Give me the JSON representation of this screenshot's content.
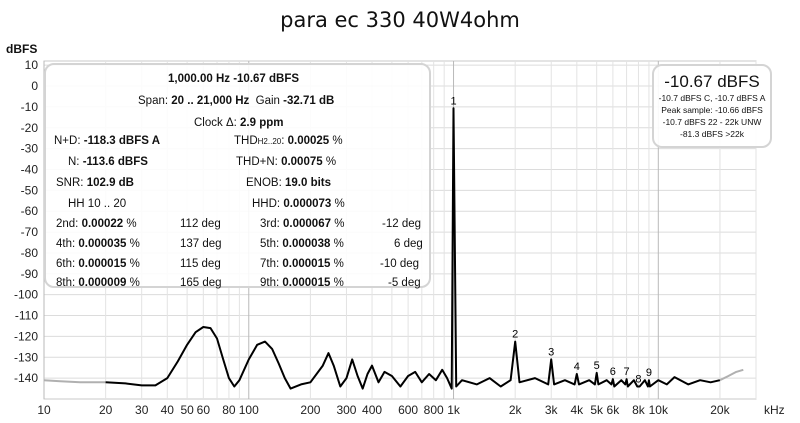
{
  "chart_data": {
    "type": "line",
    "title": "para ec 330 40W4ohm",
    "ylabel": "dBFS",
    "xunit": "kHz",
    "x_scale": "log",
    "xlim": [
      10,
      30000
    ],
    "ylim": [
      -150,
      12
    ],
    "grid": true,
    "yticks": [
      10,
      0,
      -10,
      -20,
      -30,
      -40,
      -50,
      -60,
      -70,
      -80,
      -90,
      -100,
      -110,
      -120,
      -130,
      -140
    ],
    "xticks": [
      {
        "v": 10,
        "label": "10"
      },
      {
        "v": 20,
        "label": "20"
      },
      {
        "v": 30,
        "label": "30"
      },
      {
        "v": 40,
        "label": "40"
      },
      {
        "v": 50,
        "label": "50"
      },
      {
        "v": 60,
        "label": "60"
      },
      {
        "v": 80,
        "label": "80"
      },
      {
        "v": 100,
        "label": "100"
      },
      {
        "v": 200,
        "label": "200"
      },
      {
        "v": 300,
        "label": "300"
      },
      {
        "v": 400,
        "label": "400"
      },
      {
        "v": 600,
        "label": "600"
      },
      {
        "v": 800,
        "label": "800"
      },
      {
        "v": 1000,
        "label": "1k"
      },
      {
        "v": 2000,
        "label": "2k"
      },
      {
        "v": 3000,
        "label": "3k"
      },
      {
        "v": 4000,
        "label": "4k"
      },
      {
        "v": 5000,
        "label": "5k"
      },
      {
        "v": 6000,
        "label": "6k"
      },
      {
        "v": 8000,
        "label": "8k"
      },
      {
        "v": 10000,
        "label": "10k"
      },
      {
        "v": 20000,
        "label": "20k"
      }
    ],
    "series_color": "#000000",
    "outside_band_color": "#b0b0b0",
    "floor_points": [
      [
        10,
        -141
      ],
      [
        12,
        -141.5
      ],
      [
        15,
        -142
      ],
      [
        18,
        -142
      ],
      [
        20,
        -142
      ],
      [
        25,
        -142.5
      ],
      [
        30,
        -143.5
      ],
      [
        35,
        -143.5
      ],
      [
        40,
        -140
      ],
      [
        45,
        -132
      ],
      [
        50,
        -124
      ],
      [
        55,
        -118
      ],
      [
        60,
        -115.5
      ],
      [
        65,
        -116
      ],
      [
        70,
        -121
      ],
      [
        75,
        -131
      ],
      [
        80,
        -140
      ],
      [
        85,
        -144
      ],
      [
        90,
        -141
      ],
      [
        100,
        -131
      ],
      [
        110,
        -124
      ],
      [
        120,
        -122.5
      ],
      [
        130,
        -126
      ],
      [
        140,
        -133
      ],
      [
        150,
        -140
      ],
      [
        160,
        -145
      ],
      [
        180,
        -143
      ],
      [
        200,
        -142
      ],
      [
        230,
        -134
      ],
      [
        245,
        -128
      ],
      [
        260,
        -134
      ],
      [
        280,
        -144
      ],
      [
        300,
        -140
      ],
      [
        320,
        -131
      ],
      [
        340,
        -139
      ],
      [
        360,
        -145
      ],
      [
        380,
        -138
      ],
      [
        400,
        -134
      ],
      [
        430,
        -142
      ],
      [
        460,
        -137
      ],
      [
        500,
        -139
      ],
      [
        550,
        -144
      ],
      [
        600,
        -139
      ],
      [
        650,
        -137
      ],
      [
        700,
        -142
      ],
      [
        760,
        -138
      ],
      [
        820,
        -141
      ],
      [
        880,
        -136
      ],
      [
        930,
        -140
      ],
      [
        980,
        -145
      ],
      [
        1000,
        -10.67
      ],
      [
        1030,
        -144
      ],
      [
        1100,
        -141
      ],
      [
        1300,
        -143
      ],
      [
        1500,
        -140
      ],
      [
        1700,
        -144
      ],
      [
        1900,
        -141
      ],
      [
        2000,
        -122.5
      ],
      [
        2100,
        -142
      ],
      [
        2500,
        -140
      ],
      [
        2900,
        -143
      ],
      [
        3000,
        -131
      ],
      [
        3100,
        -143
      ],
      [
        3500,
        -141
      ],
      [
        3900,
        -143
      ],
      [
        4000,
        -138
      ],
      [
        4100,
        -143
      ],
      [
        4600,
        -141
      ],
      [
        4900,
        -143
      ],
      [
        5000,
        -137.5
      ],
      [
        5100,
        -143
      ],
      [
        5600,
        -141
      ],
      [
        5900,
        -143
      ],
      [
        6000,
        -140.5
      ],
      [
        6100,
        -144
      ],
      [
        6600,
        -141
      ],
      [
        6900,
        -143
      ],
      [
        7000,
        -140.5
      ],
      [
        7100,
        -144
      ],
      [
        7600,
        -141
      ],
      [
        7900,
        -144
      ],
      [
        8000,
        -144
      ],
      [
        8100,
        -144
      ],
      [
        8600,
        -141
      ],
      [
        8900,
        -144
      ],
      [
        9000,
        -141
      ],
      [
        9100,
        -144
      ],
      [
        10000,
        -141
      ],
      [
        11000,
        -143
      ],
      [
        12000,
        -139.5
      ],
      [
        14000,
        -143
      ],
      [
        16000,
        -141
      ],
      [
        18000,
        -142
      ],
      [
        20000,
        -141
      ],
      [
        22000,
        -139
      ],
      [
        24000,
        -137
      ],
      [
        26000,
        -136
      ]
    ],
    "harmonics": [
      {
        "label": "1",
        "x": 1000,
        "y": -10.67
      },
      {
        "label": "2",
        "x": 2000,
        "y": -122.5
      },
      {
        "label": "3",
        "x": 3000,
        "y": -131
      },
      {
        "label": "4",
        "x": 4000,
        "y": -138
      },
      {
        "label": "5",
        "x": 5000,
        "y": -137.5
      },
      {
        "label": "6",
        "x": 6000,
        "y": -140.5
      },
      {
        "label": "7",
        "x": 7000,
        "y": -140.5
      },
      {
        "label": "8",
        "x": 8000,
        "y": -144
      },
      {
        "label": "9",
        "x": 9000,
        "y": -141
      }
    ]
  },
  "panel": {
    "line1": "1,000.00 Hz  -10.67 dBFS",
    "span_label": "Span:",
    "span_value": "20 .. 21,000 Hz",
    "gain_label": "Gain",
    "gain_value": "-32.71 dB",
    "clock_label": "Clock Δ:",
    "clock_value": "2.9 ppm",
    "nd_label": "N+D:",
    "nd_value": "-118.3 dBFS A",
    "thd_label": "THD",
    "thd_sub": "H2..20",
    "thd_value": "0.00025",
    "n_label": "N:",
    "n_value": "-113.6 dBFS",
    "thdn_label": "THD+N:",
    "thdn_value": "0.00075",
    "snr_label": "SNR:",
    "snr_value": "102.9 dB",
    "enob_label": "ENOB:",
    "enob_value": "19.0 bits",
    "hh_text": "HH 10 .. 20",
    "hhd_label": "HHD:",
    "hhd_value": "0.000073",
    "percent": "%",
    "harmonic_table": [
      {
        "l_label": "2nd:",
        "l_value": "0.00022",
        "l_deg": "112 deg",
        "r_label": "3rd:",
        "r_value": "0.000067",
        "r_deg": "-12 deg"
      },
      {
        "l_label": "4th:",
        "l_value": "0.000035",
        "l_deg": "137 deg",
        "r_label": "5th:",
        "r_value": "0.000038",
        "r_deg": "6 deg"
      },
      {
        "l_label": "6th:",
        "l_value": "0.000015",
        "l_deg": "115 deg",
        "r_label": "7th:",
        "r_value": "0.000015",
        "r_deg": "-10 deg"
      },
      {
        "l_label": "8th:",
        "l_value": "0.000009",
        "l_deg": "165 deg",
        "r_label": "9th:",
        "r_value": "0.000015",
        "r_deg": "-5 deg"
      }
    ]
  },
  "peak_box": {
    "big": "-10.67 dBFS",
    "line1": "-10.7 dBFS C, -10.7 dBFS A",
    "line2": "Peak sample: -10.66 dBFS",
    "line3": "-10.7 dBFS 22 - 22k UNW",
    "line4": "-81.3 dBFS >22k"
  }
}
